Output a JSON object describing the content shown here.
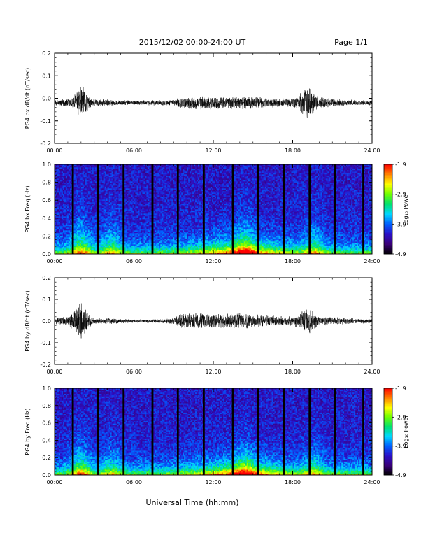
{
  "header": {
    "title": "2015/12/02  00:00-24:00 UT",
    "page": "Page 1/1"
  },
  "footer": {
    "xlabel": "Universal Time (hh:mm)"
  },
  "colorbar": {
    "label": "Log₁₀ Power",
    "ticks": [
      "-1.9",
      "-2.9",
      "-3.9",
      "-4.9"
    ],
    "range": [
      -4.9,
      -1.9
    ],
    "colors": [
      "#000000",
      "#3a007a",
      "#2a10c8",
      "#0060ff",
      "#00d8ff",
      "#00e070",
      "#70ff00",
      "#ffff00",
      "#ff8000",
      "#ff0000"
    ]
  },
  "chart_data": [
    {
      "type": "line",
      "ylabel": "PG4 bx dB/dt (nT/sec)",
      "xlim": [
        "00:00",
        "24:00"
      ],
      "xticks": [
        "00:00",
        "06:00",
        "12:00",
        "18:00",
        "24:00"
      ],
      "ylim": [
        -0.2,
        0.2
      ],
      "yticks": [
        "-0.2",
        "-0.1",
        "0.0",
        "0.1",
        "0.2"
      ],
      "envelope": {
        "x_hours": [
          0,
          0.5,
          1.0,
          1.5,
          1.8,
          2.0,
          2.3,
          2.6,
          3.0,
          3.5,
          4.0,
          4.5,
          5.0,
          5.5,
          6.0,
          6.5,
          7.0,
          7.5,
          8.0,
          9.0,
          9.5,
          10.0,
          11.0,
          12.0,
          12.5,
          13.0,
          14.0,
          15.0,
          15.5,
          16.0,
          17.0,
          18.0,
          18.5,
          19.0,
          19.3,
          19.7,
          20.0,
          21.0,
          22.0,
          23.0,
          24.0
        ],
        "amplitude": [
          0.012,
          0.018,
          0.02,
          0.04,
          0.07,
          0.1,
          0.06,
          0.03,
          0.02,
          0.018,
          0.016,
          0.014,
          0.012,
          0.012,
          0.011,
          0.012,
          0.012,
          0.012,
          0.012,
          0.014,
          0.025,
          0.03,
          0.03,
          0.03,
          0.028,
          0.03,
          0.03,
          0.032,
          0.028,
          0.022,
          0.02,
          0.02,
          0.045,
          0.07,
          0.08,
          0.045,
          0.03,
          0.02,
          0.015,
          0.012,
          0.012
        ]
      },
      "offset": -0.02
    },
    {
      "type": "heatmap",
      "ylabel": "PG4 bx Freq (Hz)",
      "xlim": [
        "00:00",
        "24:00"
      ],
      "xticks": [
        "00:00",
        "06:00",
        "12:00",
        "18:00",
        "24:00"
      ],
      "ylim": [
        0.0,
        1.0
      ],
      "yticks": [
        "0.0",
        "0.2",
        "0.4",
        "0.6",
        "0.8",
        "1.0"
      ],
      "gap_hours": [
        1.38,
        3.3,
        5.22,
        7.4,
        9.32,
        11.28,
        13.48,
        15.4,
        17.34,
        19.28,
        21.2,
        23.34
      ],
      "bursts": [
        {
          "center_hour": 2.0,
          "strength": 1.0
        },
        {
          "center_hour": 4.3,
          "strength": 0.7
        },
        {
          "center_hour": 14.4,
          "strength": 0.8
        },
        {
          "center_hour": 19.6,
          "strength": 0.7
        }
      ]
    },
    {
      "type": "line",
      "ylabel": "PG4 by dB/dt (nT/sec)",
      "xlim": [
        "00:00",
        "24:00"
      ],
      "xticks": [
        "00:00",
        "06:00",
        "12:00",
        "18:00",
        "24:00"
      ],
      "ylim": [
        -0.2,
        0.2
      ],
      "yticks": [
        "-0.2",
        "-0.1",
        "0.0",
        "0.1",
        "0.2"
      ],
      "envelope": {
        "x_hours": [
          0,
          0.5,
          1.0,
          1.5,
          1.8,
          2.0,
          2.3,
          2.6,
          3.0,
          3.5,
          4.0,
          4.5,
          5.0,
          5.5,
          6.0,
          6.5,
          7.0,
          8.0,
          9.0,
          9.5,
          10.0,
          11.0,
          12.0,
          13.0,
          14.0,
          15.0,
          16.0,
          17.0,
          18.0,
          18.5,
          19.0,
          19.3,
          19.7,
          20.0,
          21.0,
          22.0,
          23.0,
          24.0
        ],
        "amplitude": [
          0.015,
          0.02,
          0.025,
          0.05,
          0.08,
          0.11,
          0.07,
          0.03,
          0.015,
          0.012,
          0.015,
          0.012,
          0.01,
          0.01,
          0.008,
          0.008,
          0.008,
          0.01,
          0.015,
          0.035,
          0.04,
          0.04,
          0.035,
          0.038,
          0.04,
          0.035,
          0.03,
          0.025,
          0.025,
          0.04,
          0.06,
          0.07,
          0.04,
          0.025,
          0.02,
          0.015,
          0.012,
          0.01
        ]
      },
      "offset": 0.0
    },
    {
      "type": "heatmap",
      "ylabel": "PG4 by Freq (Hz)",
      "xlim": [
        "00:00",
        "24:00"
      ],
      "xticks": [
        "00:00",
        "06:00",
        "12:00",
        "18:00",
        "24:00"
      ],
      "ylim": [
        0.0,
        1.0
      ],
      "yticks": [
        "0.0",
        "0.2",
        "0.4",
        "0.6",
        "0.8",
        "1.0"
      ],
      "gap_hours": [
        1.38,
        3.3,
        5.22,
        7.4,
        9.32,
        11.28,
        13.48,
        15.4,
        17.34,
        19.28,
        21.2,
        23.34
      ],
      "bursts": [
        {
          "center_hour": 2.0,
          "strength": 1.0
        },
        {
          "center_hour": 4.3,
          "strength": 0.6
        },
        {
          "center_hour": 14.4,
          "strength": 0.8
        },
        {
          "center_hour": 19.6,
          "strength": 0.6
        }
      ]
    }
  ]
}
